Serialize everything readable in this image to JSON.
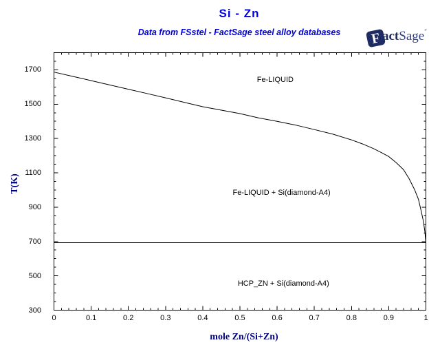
{
  "header": {
    "title": "Si - Zn",
    "subtitle": "Data from FSstel - FactSage steel alloy databases"
  },
  "logo": {
    "f": "F",
    "act": "act",
    "sage": "Sage",
    "tm": "″"
  },
  "colors": {
    "title_blue": "#0000e0",
    "axis_title_navy": "#000080",
    "logo_navy": "#1f2b63",
    "curve_black": "#000000"
  },
  "chart_data": {
    "type": "line",
    "title": "Si - Zn",
    "subtitle": "Data from FSstel - FactSage steel alloy databases",
    "xlabel": "mole Zn/(Si+Zn)",
    "ylabel": "T(K)",
    "xlim": [
      0,
      1
    ],
    "ylim": [
      300,
      1800
    ],
    "grid": false,
    "legend": false,
    "x_major_tick_step": 0.1,
    "x_minor_tick_step": 0.02,
    "y_major_tick_step": 200,
    "y_minor_tick_step": 50,
    "x_tick_labels": [
      "0",
      "0.1",
      "0.2",
      "0.3",
      "0.4",
      "0.5",
      "0.6",
      "0.7",
      "0.8",
      "0.9",
      "1"
    ],
    "x_tick_values": [
      0,
      0.1,
      0.2,
      0.3,
      0.4,
      0.5,
      0.6,
      0.7,
      0.8,
      0.9,
      1
    ],
    "y_tick_labels": [
      "300",
      "500",
      "700",
      "900",
      "1100",
      "1300",
      "1500",
      "1700"
    ],
    "y_tick_values": [
      300,
      500,
      700,
      900,
      1100,
      1300,
      1500,
      1700
    ],
    "series": [
      {
        "name": "liquidus-curve",
        "x": [
          0,
          0.05,
          0.1,
          0.15,
          0.2,
          0.25,
          0.3,
          0.35,
          0.4,
          0.45,
          0.5,
          0.55,
          0.6,
          0.65,
          0.7,
          0.75,
          0.8,
          0.83,
          0.86,
          0.88,
          0.9,
          0.92,
          0.94,
          0.955,
          0.97,
          0.98,
          0.987,
          0.993,
          0.997,
          1.0
        ],
        "y": [
          1687,
          1662,
          1637,
          1612,
          1587,
          1562,
          1537,
          1511,
          1485,
          1465,
          1445,
          1420,
          1400,
          1378,
          1352,
          1325,
          1292,
          1268,
          1240,
          1218,
          1195,
          1160,
          1118,
          1065,
          1000,
          945,
          880,
          820,
          760,
          693
        ]
      },
      {
        "name": "eutectic-line",
        "x": [
          0,
          1.0
        ],
        "y": [
          693,
          693
        ]
      }
    ],
    "region_labels": [
      {
        "text": "Fe-LIQUID",
        "x": 0.595,
        "T": 1640
      },
      {
        "text": "Fe-LIQUID + Si(diamond-A4)",
        "x": 0.612,
        "T": 985
      },
      {
        "text": "HCP_ZN + Si(diamond-A4)",
        "x": 0.617,
        "T": 456
      }
    ]
  }
}
